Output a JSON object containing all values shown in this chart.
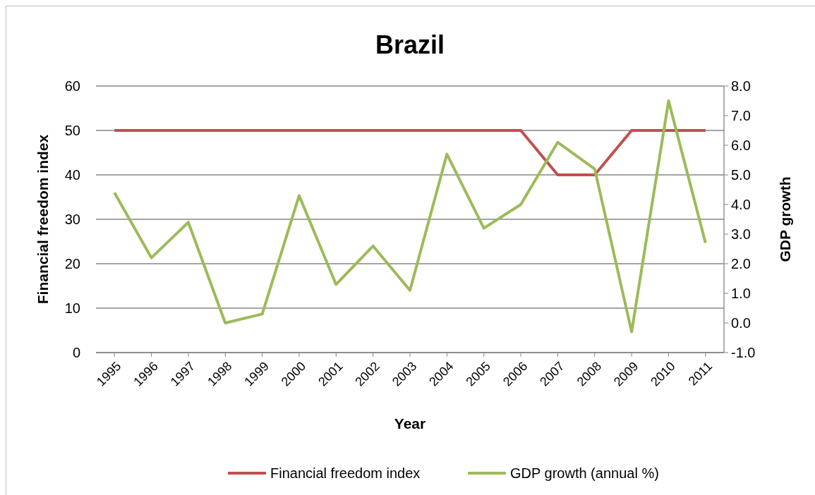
{
  "chart_data": {
    "type": "line",
    "title": "Brazil",
    "xlabel": "Year",
    "ylabel": "Financial freedom index",
    "y2label": "GDP growth",
    "categories": [
      "1995",
      "1996",
      "1997",
      "1998",
      "1999",
      "2000",
      "2001",
      "2002",
      "2003",
      "2004",
      "2005",
      "2006",
      "2007",
      "2008",
      "2009",
      "2010",
      "2011"
    ],
    "series": [
      {
        "name": "Financial freedom index",
        "color": "#c0504d",
        "values": [
          50,
          50,
          50,
          50,
          50,
          50,
          50,
          50,
          50,
          50,
          50,
          50,
          40,
          40,
          50,
          50,
          50
        ]
      },
      {
        "name": "GDP growth (annual %)",
        "color": "#9bbb59",
        "axis": "y2",
        "values": [
          4.4,
          2.2,
          3.4,
          0.0,
          0.3,
          4.3,
          1.3,
          2.6,
          1.1,
          5.7,
          3.2,
          4.0,
          6.1,
          5.2,
          -0.3,
          7.5,
          2.7
        ]
      }
    ],
    "ylim": [
      0,
      60
    ],
    "yticks": [
      0,
      10,
      20,
      30,
      40,
      50,
      60
    ],
    "y2lim": [
      -1,
      8
    ],
    "y2ticks": [
      {
        "value": -1,
        "label": "-1.0"
      },
      {
        "value": 0,
        "label": "0.0"
      },
      {
        "value": 1,
        "label": "1.0"
      },
      {
        "value": 2,
        "label": "2.0"
      },
      {
        "value": 3,
        "label": "3.0"
      },
      {
        "value": 4,
        "label": "4.0"
      },
      {
        "value": 5,
        "label": "5.0"
      },
      {
        "value": 6,
        "label": "6.0"
      },
      {
        "value": 7,
        "label": "7.0"
      },
      {
        "value": 8,
        "label": "8.0"
      }
    ],
    "grid": "y",
    "legend": "bottom",
    "marker": "none",
    "line_style": "solid"
  }
}
